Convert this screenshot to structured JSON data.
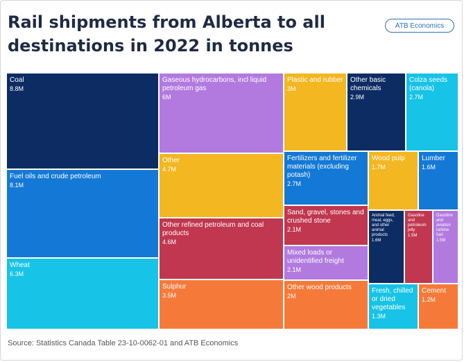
{
  "header": {
    "title": "Rail shipments from Alberta to all destinations in 2022 in tonnes",
    "badge": "ATB Economics"
  },
  "footer": {
    "source": "Source: Statistics Canada Table 23-10-0062-01 and ATB Economics"
  },
  "chart_data": {
    "type": "treemap",
    "unit": "tonnes",
    "items": [
      {
        "name": "Coal",
        "label": "8.8M",
        "value": 8.8,
        "color": "#0d2c63"
      },
      {
        "name": "Fuel oils and crude petroleum",
        "label": "8.1M",
        "value": 8.1,
        "color": "#1479d6"
      },
      {
        "name": "Wheat",
        "label": "6.3M",
        "value": 6.3,
        "color": "#17c3e6"
      },
      {
        "name": "Gaseous hydrocarbons, incl liquid petroleum gas",
        "label": "6M",
        "value": 6.0,
        "color": "#b27adf"
      },
      {
        "name": "Other",
        "label": "4.7M",
        "value": 4.7,
        "color": "#f2b721"
      },
      {
        "name": "Other refined petroleum and coal products",
        "label": "4.6M",
        "value": 4.6,
        "color": "#c0374f"
      },
      {
        "name": "Sulphur",
        "label": "3.5M",
        "value": 3.5,
        "color": "#f57a3a"
      },
      {
        "name": "Plastic and rubber",
        "label": "3M",
        "value": 3.0,
        "color": "#f2b721"
      },
      {
        "name": "Other basic chemicals",
        "label": "2.9M",
        "value": 2.9,
        "color": "#0d2c63"
      },
      {
        "name": "Colza seeds (canola)",
        "label": "2.7M",
        "value": 2.7,
        "color": "#17c3e6"
      },
      {
        "name": "Fertilizers and fertilizer materials (excluding potash)",
        "label": "2.7M",
        "value": 2.7,
        "color": "#1479d6"
      },
      {
        "name": "Sand, gravel, stones and crushed stone",
        "label": "2.1M",
        "value": 2.1,
        "color": "#c0374f"
      },
      {
        "name": "Mixed loads or unidentified freight",
        "label": "2.1M",
        "value": 2.1,
        "color": "#b27adf"
      },
      {
        "name": "Other wood products",
        "label": "2M",
        "value": 2.0,
        "color": "#f57a3a"
      },
      {
        "name": "Wood pulp",
        "label": "1.7M",
        "value": 1.7,
        "color": "#f2b721"
      },
      {
        "name": "Lumber",
        "label": "1.6M",
        "value": 1.6,
        "color": "#1479d6"
      },
      {
        "name": "Animal feed, meal, eggs, and other animal products",
        "label": "1.6M",
        "value": 1.6,
        "color": "#0d2c63"
      },
      {
        "name": "Gasoline and petroleum jelly",
        "label": "1.5M",
        "value": 1.5,
        "color": "#c0374f"
      },
      {
        "name": "Gasoline and aviation turbine fuel",
        "label": "1.5M",
        "value": 1.5,
        "color": "#b27adf"
      },
      {
        "name": "Fresh, chilled or dried vegetables",
        "label": "1.3M",
        "value": 1.3,
        "color": "#17c3e6"
      },
      {
        "name": "Cement",
        "label": "1.2M",
        "value": 1.2,
        "color": "#f57a3a"
      }
    ]
  }
}
